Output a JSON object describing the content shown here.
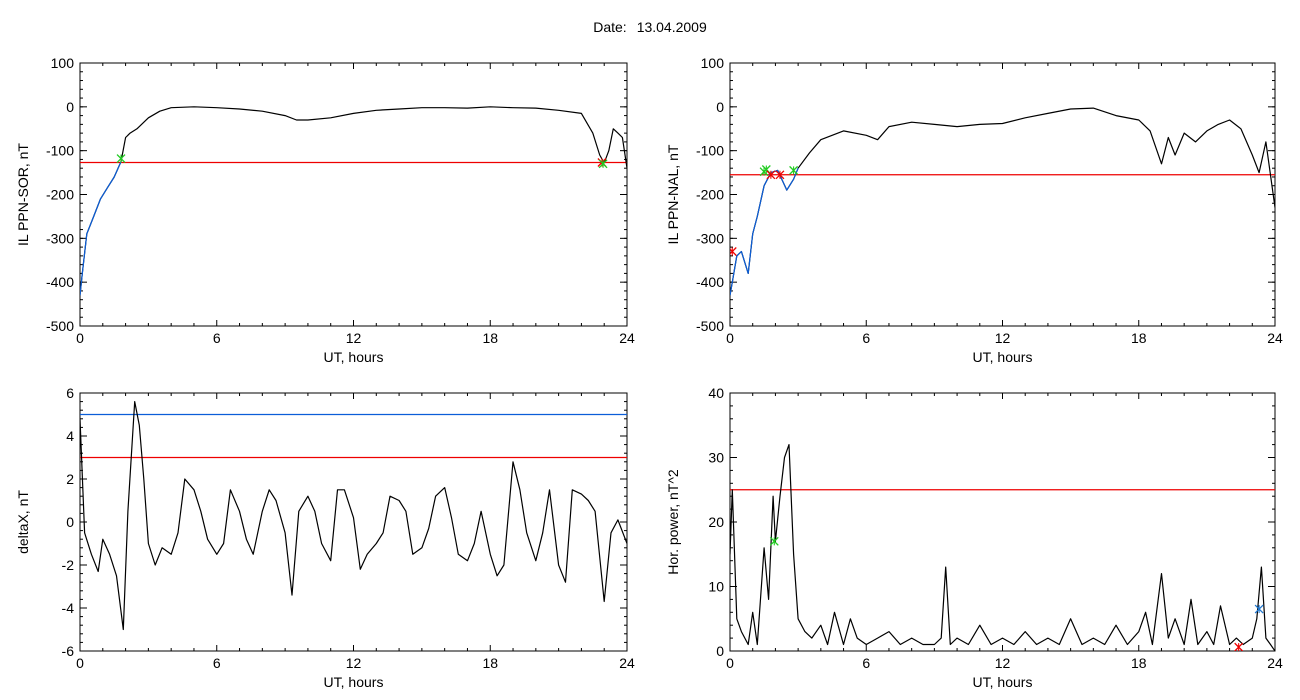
{
  "header": {
    "date_label": "Date:",
    "date_value": "13.04.2009"
  },
  "colors": {
    "trace": "#000000",
    "red_level": "#ee0000",
    "blue_level": "#0b5ed8",
    "green_marker": "#22cc22",
    "red_marker": "#ee0000",
    "blue_marker": "#1f77d0"
  },
  "chart_data": [
    {
      "id": "tl",
      "type": "line",
      "xlabel": "UT, hours",
      "ylabel": "IL PPN-SOR, nT",
      "xlim": [
        0,
        24
      ],
      "ylim": [
        -500,
        100
      ],
      "xticks": [
        0,
        6,
        12,
        18,
        24
      ],
      "yticks": [
        -500,
        -400,
        -300,
        -200,
        -100,
        0,
        100
      ],
      "levels": [
        {
          "y": -127,
          "color": "red_level"
        }
      ],
      "series": [
        {
          "color": "trace",
          "x": [
            0,
            0.1,
            0.3,
            0.6,
            0.9,
            1.2,
            1.5,
            1.8,
            2.0,
            2.2,
            2.5,
            3.0,
            3.5,
            4.0,
            5.0,
            6.0,
            7.0,
            8.0,
            9.0,
            9.5,
            10.0,
            11.0,
            12.0,
            13.0,
            14.0,
            15.0,
            16.0,
            17.0,
            18.0,
            19.0,
            20.0,
            21.0,
            22.0,
            22.5,
            22.8,
            23.0,
            23.2,
            23.4,
            23.6,
            23.8,
            24.0
          ],
          "y": [
            -430,
            -380,
            -290,
            -250,
            -210,
            -185,
            -160,
            -125,
            -70,
            -60,
            -50,
            -25,
            -10,
            -2,
            0,
            -2,
            -5,
            -10,
            -20,
            -30,
            -30,
            -25,
            -15,
            -8,
            -5,
            -2,
            -2,
            -3,
            0,
            -2,
            -3,
            -8,
            -15,
            -60,
            -110,
            -128,
            -100,
            -50,
            -60,
            -70,
            -140
          ]
        },
        {
          "color": "blue_level",
          "x": [
            0,
            0.1,
            0.3,
            0.6,
            0.9,
            1.2,
            1.5,
            1.8
          ],
          "y": [
            -430,
            -380,
            -290,
            -250,
            -210,
            -185,
            -160,
            -125
          ]
        }
      ],
      "markers": [
        {
          "x": 1.8,
          "y": -118,
          "color": "green_marker"
        },
        {
          "x": 22.9,
          "y": -127,
          "color": "red_marker"
        },
        {
          "x": 22.95,
          "y": -130,
          "color": "green_marker"
        }
      ]
    },
    {
      "id": "tr",
      "type": "line",
      "xlabel": "UT, hours",
      "ylabel": "IL PPN-NAL, nT",
      "xlim": [
        0,
        24
      ],
      "ylim": [
        -500,
        100
      ],
      "xticks": [
        0,
        6,
        12,
        18,
        24
      ],
      "yticks": [
        -500,
        -400,
        -300,
        -200,
        -100,
        0,
        100
      ],
      "levels": [
        {
          "y": -155,
          "color": "red_level"
        }
      ],
      "series": [
        {
          "color": "trace",
          "x": [
            0,
            0.1,
            0.3,
            0.5,
            0.8,
            1.0,
            1.2,
            1.5,
            1.8,
            2.1,
            2.5,
            2.8,
            3.0,
            3.5,
            4.0,
            5.0,
            6.0,
            6.5,
            7.0,
            8.0,
            9.0,
            10.0,
            11.0,
            12.0,
            13.0,
            14.0,
            15.0,
            16.0,
            17.0,
            18.0,
            18.5,
            19.0,
            19.3,
            19.6,
            20.0,
            20.5,
            21.0,
            21.5,
            22.0,
            22.5,
            23.0,
            23.3,
            23.6,
            24.0
          ],
          "y": [
            -430,
            -400,
            -340,
            -330,
            -380,
            -290,
            -250,
            -180,
            -150,
            -145,
            -190,
            -165,
            -140,
            -105,
            -75,
            -55,
            -65,
            -75,
            -45,
            -35,
            -40,
            -45,
            -40,
            -38,
            -25,
            -15,
            -5,
            -3,
            -20,
            -30,
            -55,
            -130,
            -70,
            -110,
            -60,
            -80,
            -55,
            -40,
            -30,
            -50,
            -110,
            -150,
            -80,
            -230
          ]
        },
        {
          "color": "blue_level",
          "x": [
            0,
            0.1,
            0.3,
            0.5,
            0.8,
            1.0,
            1.2,
            1.5,
            1.8,
            2.1,
            2.5,
            2.8,
            3.0
          ],
          "y": [
            -430,
            -400,
            -340,
            -330,
            -380,
            -290,
            -250,
            -180,
            -150,
            -145,
            -190,
            -165,
            -140
          ]
        }
      ],
      "markers": [
        {
          "x": 0.1,
          "y": -330,
          "color": "red_marker"
        },
        {
          "x": 1.5,
          "y": -148,
          "color": "green_marker"
        },
        {
          "x": 1.6,
          "y": -143,
          "color": "green_marker"
        },
        {
          "x": 1.8,
          "y": -155,
          "color": "red_marker"
        },
        {
          "x": 2.2,
          "y": -155,
          "color": "red_marker"
        },
        {
          "x": 2.8,
          "y": -145,
          "color": "green_marker"
        }
      ]
    },
    {
      "id": "bl",
      "type": "line",
      "xlabel": "UT, hours",
      "ylabel": "deltaX, nT",
      "xlim": [
        0,
        24
      ],
      "ylim": [
        -6,
        6
      ],
      "xticks": [
        0,
        6,
        12,
        18,
        24
      ],
      "yticks": [
        -6,
        -4,
        -2,
        0,
        2,
        4,
        6
      ],
      "levels": [
        {
          "y": 5,
          "color": "blue_level"
        },
        {
          "y": 3,
          "color": "red_level"
        }
      ],
      "series": [
        {
          "color": "trace",
          "x": [
            0,
            0.2,
            0.5,
            0.8,
            1.0,
            1.3,
            1.6,
            1.9,
            2.1,
            2.4,
            2.6,
            2.8,
            3.0,
            3.3,
            3.6,
            4.0,
            4.3,
            4.6,
            5.0,
            5.3,
            5.6,
            6.0,
            6.3,
            6.6,
            7.0,
            7.3,
            7.6,
            8.0,
            8.3,
            8.6,
            9.0,
            9.3,
            9.6,
            10.0,
            10.3,
            10.6,
            11.0,
            11.3,
            11.6,
            12.0,
            12.3,
            12.6,
            13.0,
            13.3,
            13.6,
            14.0,
            14.3,
            14.6,
            15.0,
            15.3,
            15.6,
            16.0,
            16.3,
            16.6,
            17.0,
            17.3,
            17.6,
            18.0,
            18.3,
            18.6,
            19.0,
            19.3,
            19.6,
            20.0,
            20.3,
            20.6,
            21.0,
            21.3,
            21.6,
            22.0,
            22.3,
            22.6,
            23.0,
            23.3,
            23.6,
            24.0
          ],
          "y": [
            4.8,
            -0.5,
            -1.5,
            -2.3,
            -0.8,
            -1.5,
            -2.5,
            -5.0,
            0.5,
            5.6,
            4.5,
            2.0,
            -1.0,
            -2.0,
            -1.2,
            -1.5,
            -0.5,
            2.0,
            1.5,
            0.5,
            -0.8,
            -1.5,
            -1.0,
            1.5,
            0.5,
            -0.8,
            -1.5,
            0.5,
            1.5,
            1.0,
            -0.5,
            -3.4,
            0.5,
            1.2,
            0.5,
            -1.0,
            -1.8,
            1.5,
            1.5,
            0.2,
            -2.2,
            -1.5,
            -1.0,
            -0.5,
            1.2,
            1.0,
            0.5,
            -1.5,
            -1.2,
            -0.3,
            1.2,
            1.6,
            0.2,
            -1.5,
            -1.8,
            -1.0,
            0.5,
            -1.5,
            -2.5,
            -2.0,
            2.8,
            1.5,
            -0.5,
            -1.8,
            -0.5,
            1.5,
            -2.0,
            -2.8,
            1.5,
            1.3,
            1.0,
            0.5,
            -3.7,
            -0.5,
            0.1,
            -1.0
          ]
        }
      ],
      "markers": []
    },
    {
      "id": "br",
      "type": "line",
      "xlabel": "UT, hours",
      "ylabel": "Hor. power, nT^2",
      "xlim": [
        0,
        24
      ],
      "ylim": [
        0,
        40
      ],
      "xticks": [
        0,
        6,
        12,
        18,
        24
      ],
      "yticks": [
        0,
        10,
        20,
        30,
        40
      ],
      "levels": [
        {
          "y": 25,
          "color": "red_level"
        }
      ],
      "series": [
        {
          "color": "trace",
          "x": [
            0,
            0.1,
            0.3,
            0.5,
            0.8,
            1.0,
            1.2,
            1.5,
            1.7,
            1.9,
            2.0,
            2.2,
            2.4,
            2.6,
            2.8,
            3.0,
            3.3,
            3.6,
            4.0,
            4.3,
            4.6,
            5.0,
            5.3,
            5.6,
            6.0,
            6.5,
            7.0,
            7.5,
            8.0,
            8.5,
            9.0,
            9.3,
            9.5,
            9.7,
            10.0,
            10.5,
            11.0,
            11.5,
            12.0,
            12.5,
            13.0,
            13.5,
            14.0,
            14.5,
            15.0,
            15.5,
            16.0,
            16.5,
            17.0,
            17.5,
            18.0,
            18.3,
            18.6,
            19.0,
            19.3,
            19.6,
            20.0,
            20.3,
            20.6,
            21.0,
            21.3,
            21.6,
            22.0,
            22.3,
            22.6,
            23.0,
            23.2,
            23.4,
            23.6,
            23.8,
            24.0
          ],
          "y": [
            15,
            25,
            5,
            3,
            1,
            6,
            1,
            16,
            8,
            24,
            17,
            24,
            30,
            32,
            15,
            5,
            3,
            2,
            4,
            1,
            6,
            1,
            5,
            2,
            1,
            2,
            3,
            1,
            2,
            1,
            1,
            2,
            13,
            1,
            2,
            1,
            4,
            1,
            2,
            1,
            3,
            1,
            2,
            1,
            5,
            1,
            2,
            1,
            4,
            1,
            3,
            6,
            1,
            12,
            2,
            5,
            1,
            8,
            1,
            3,
            1,
            7,
            1,
            2,
            1,
            2,
            5,
            13,
            2,
            1,
            0
          ]
        }
      ],
      "markers": [
        {
          "x": 1.95,
          "y": 17,
          "color": "green_marker"
        },
        {
          "x": 22.4,
          "y": 0.6,
          "color": "red_marker"
        },
        {
          "x": 23.3,
          "y": 6.5,
          "color": "blue_marker"
        }
      ]
    }
  ]
}
